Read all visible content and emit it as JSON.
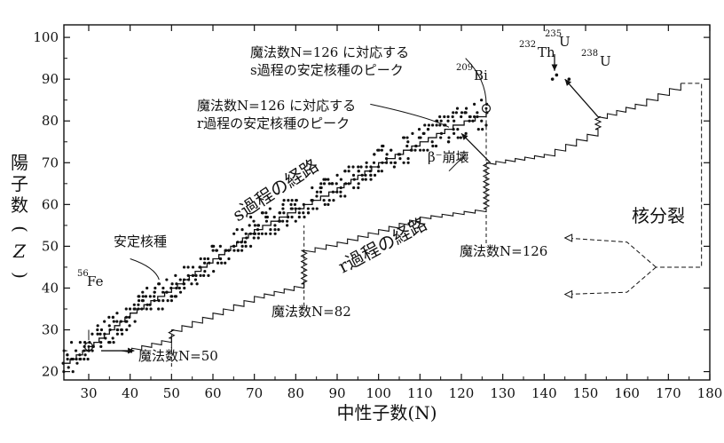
{
  "chart_data": {
    "type": "scatter",
    "title": "",
    "xlabel": "中性子数(N)",
    "ylabel": "陽子数(Z)",
    "xlim": [
      24,
      180
    ],
    "ylim": [
      18,
      103
    ],
    "xticks": [
      30,
      40,
      50,
      60,
      70,
      80,
      90,
      100,
      110,
      120,
      130,
      140,
      150,
      160,
      170,
      180
    ],
    "yticks": [
      20,
      30,
      40,
      50,
      60,
      70,
      80,
      90,
      100
    ],
    "stable_band": {
      "from_N": 24,
      "to_N": 127,
      "description_points": "stable nuclides, Z≈N·0.68+ offset"
    },
    "s_process_path": [
      [
        24,
        22
      ],
      [
        30,
        26
      ],
      [
        40,
        34
      ],
      [
        50,
        40
      ],
      [
        60,
        47
      ],
      [
        70,
        54
      ],
      [
        82,
        60
      ],
      [
        90,
        64
      ],
      [
        100,
        70
      ],
      [
        110,
        75
      ],
      [
        118,
        79
      ],
      [
        126,
        82
      ]
    ],
    "r_process_path": [
      [
        38,
        25
      ],
      [
        50,
        28
      ],
      [
        50,
        30
      ],
      [
        60,
        34
      ],
      [
        70,
        38
      ],
      [
        82,
        41
      ],
      [
        82,
        49
      ],
      [
        90,
        51
      ],
      [
        100,
        54
      ],
      [
        110,
        57
      ],
      [
        126,
        59
      ],
      [
        126,
        70
      ],
      [
        140,
        72
      ],
      [
        153,
        78
      ],
      [
        153,
        81
      ],
      [
        162,
        84
      ],
      [
        173,
        89
      ]
    ],
    "labels": {
      "fe56": {
        "sup": "56",
        "text": "Fe",
        "N": 30,
        "Z": 26
      },
      "bi209": {
        "sup": "209",
        "text": "Bi",
        "N": 126,
        "Z": 83
      },
      "th232": {
        "sup": "232",
        "text": "Th",
        "N": 142,
        "Z": 90
      },
      "u235": {
        "sup": "235",
        "text": "U",
        "N": 143,
        "Z": 92
      },
      "u238": {
        "sup": "238",
        "text": "U",
        "N": 146,
        "Z": 92
      }
    },
    "annotations": {
      "magic50": "魔法数N=50",
      "magic82": "魔法数N=82",
      "magic126": "魔法数N=126",
      "stable": "安定核種",
      "beta": "β⁻崩壊",
      "fission": "核分裂",
      "s_path": "s過程の経路",
      "r_path": "r過程の経路",
      "s_peak_line1": "魔法数N=126 に対応する",
      "s_peak_line2": "s過程の安定核種のピーク",
      "r_peak_line1": "魔法数N=126 に対応する",
      "r_peak_line2": "r過程の安定核種のピーク"
    },
    "legend": "none",
    "grid": false
  }
}
